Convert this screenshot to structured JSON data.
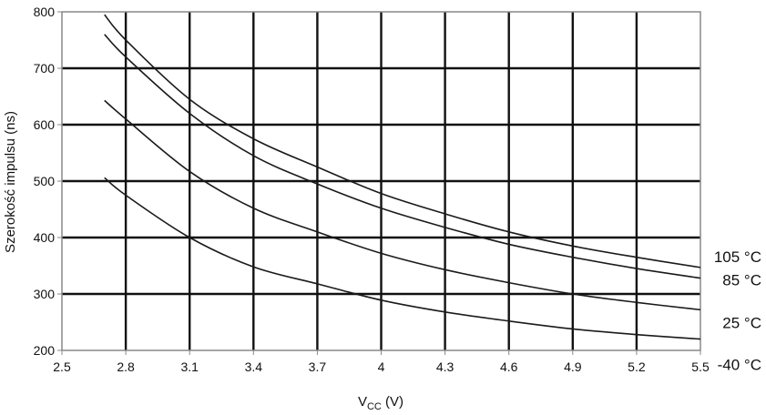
{
  "chart_data": {
    "type": "line",
    "title": "",
    "xlabel": "V_CC (V)",
    "xlabel_main": "V",
    "xlabel_sub": "CC",
    "xlabel_unit": " (V)",
    "ylabel": "Szerokość impulsu (ns)",
    "xlim": [
      2.5,
      5.5
    ],
    "ylim": [
      200,
      800
    ],
    "grid": true,
    "legend": "right-end labels",
    "x_ticks": [
      "2.5",
      "2.8",
      "3.1",
      "3.4",
      "3.7",
      "4",
      "4.3",
      "4.6",
      "4.9",
      "5.2",
      "5.5"
    ],
    "y_ticks": [
      "200",
      "300",
      "400",
      "500",
      "600",
      "700",
      "800"
    ],
    "series": [
      {
        "name": "105 °C",
        "x": [
          2.7,
          2.8,
          3.1,
          3.4,
          3.7,
          4.0,
          4.3,
          4.6,
          4.9,
          5.2,
          5.5
        ],
        "values": [
          795,
          750,
          645,
          575,
          525,
          478,
          442,
          410,
          385,
          365,
          347
        ]
      },
      {
        "name": "85 °C",
        "x": [
          2.7,
          2.8,
          3.1,
          3.4,
          3.7,
          4.0,
          4.3,
          4.6,
          4.9,
          5.2,
          5.5
        ],
        "values": [
          760,
          720,
          620,
          545,
          495,
          452,
          418,
          388,
          365,
          345,
          328
        ]
      },
      {
        "name": "25 °C",
        "x": [
          2.7,
          2.8,
          3.1,
          3.4,
          3.7,
          4.0,
          4.3,
          4.6,
          4.9,
          5.2,
          5.5
        ],
        "values": [
          643,
          610,
          517,
          452,
          410,
          372,
          343,
          320,
          300,
          285,
          272
        ]
      },
      {
        "name": "-40 °C",
        "x": [
          2.7,
          2.8,
          3.1,
          3.4,
          3.7,
          4.0,
          4.3,
          4.6,
          4.9,
          5.2,
          5.5
        ],
        "values": [
          506,
          475,
          400,
          348,
          318,
          289,
          268,
          252,
          238,
          228,
          220
        ]
      }
    ],
    "colors": {
      "line": "#1a1a1a",
      "grid": "#111111",
      "axis": "#888888",
      "background": "#ffffff"
    }
  }
}
